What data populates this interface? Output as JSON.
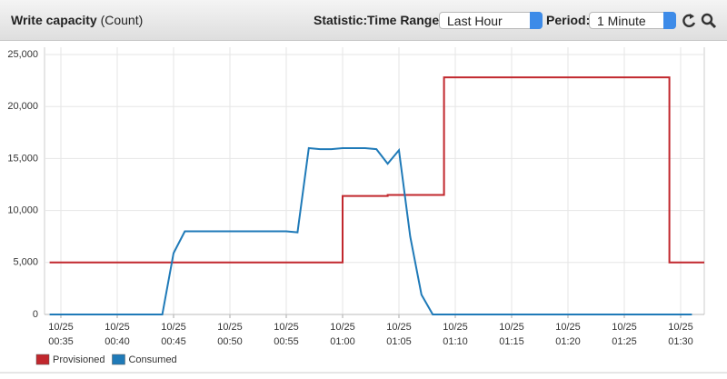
{
  "header": {
    "title": "Write capacity",
    "unit": "(Count)",
    "statistic_label": "Statistic:",
    "time_range_label": "Time Range:",
    "time_range_value": "Last Hour",
    "period_label": "Period:",
    "period_value": "1 Minute"
  },
  "chart_data": {
    "type": "line",
    "categories": [
      null,
      "10/25\n00:35",
      null,
      null,
      null,
      null,
      "10/25\n00:40",
      null,
      null,
      null,
      null,
      "10/25\n00:45",
      null,
      null,
      null,
      null,
      "10/25\n00:50",
      null,
      null,
      null,
      null,
      "10/25\n00:55",
      null,
      null,
      null,
      null,
      "10/25\n01:00",
      null,
      null,
      null,
      null,
      "10/25\n01:05",
      null,
      null,
      null,
      null,
      "10/25\n01:10",
      null,
      null,
      null,
      null,
      "10/25\n01:15",
      null,
      null,
      null,
      null,
      "10/25\n01:20",
      null,
      null,
      null,
      null,
      "10/25\n01:25",
      null,
      null,
      null,
      null,
      "10/25\n01:30",
      null
    ],
    "series": [
      {
        "name": "Provisioned",
        "color": "#c1272d",
        "step": true,
        "values": [
          5000,
          5000,
          5000,
          5000,
          5000,
          5000,
          5000,
          5000,
          5000,
          5000,
          5000,
          5000,
          5000,
          5000,
          5000,
          5000,
          5000,
          5000,
          5000,
          5000,
          5000,
          5000,
          5000,
          5000,
          5000,
          5000,
          11400,
          11400,
          11400,
          11400,
          11500,
          11500,
          11500,
          11500,
          11500,
          22800,
          22800,
          22800,
          22800,
          22800,
          22800,
          22800,
          22800,
          22800,
          22800,
          22800,
          22800,
          22800,
          22800,
          22800,
          22800,
          22800,
          22800,
          22800,
          22800,
          5000,
          5000,
          5000
        ]
      },
      {
        "name": "Consumed",
        "color": "#1f7ab8",
        "step": false,
        "values": [
          0,
          0,
          0,
          0,
          0,
          0,
          0,
          0,
          0,
          0,
          0,
          5900,
          8000,
          8000,
          8000,
          8000,
          8000,
          8000,
          8000,
          8000,
          8000,
          8000,
          7900,
          16000,
          15900,
          15900,
          16000,
          16000,
          16000,
          15900,
          14500,
          15800,
          7500,
          1900,
          0,
          0,
          0,
          0,
          0,
          0,
          0,
          0,
          0,
          0,
          0,
          0,
          0,
          0,
          0,
          0,
          0,
          0,
          0,
          0,
          0,
          0,
          0,
          0
        ]
      }
    ],
    "ylim": [
      0,
      25000
    ],
    "yticks": [
      0,
      {
        "value": 5000,
        "label": "5,000"
      },
      {
        "value": 10000,
        "label": "10,000"
      },
      {
        "value": 15000,
        "label": "15,000"
      },
      {
        "value": 20000,
        "label": "20,000"
      },
      {
        "value": 25000,
        "label": "25,000"
      }
    ],
    "grid": true
  }
}
